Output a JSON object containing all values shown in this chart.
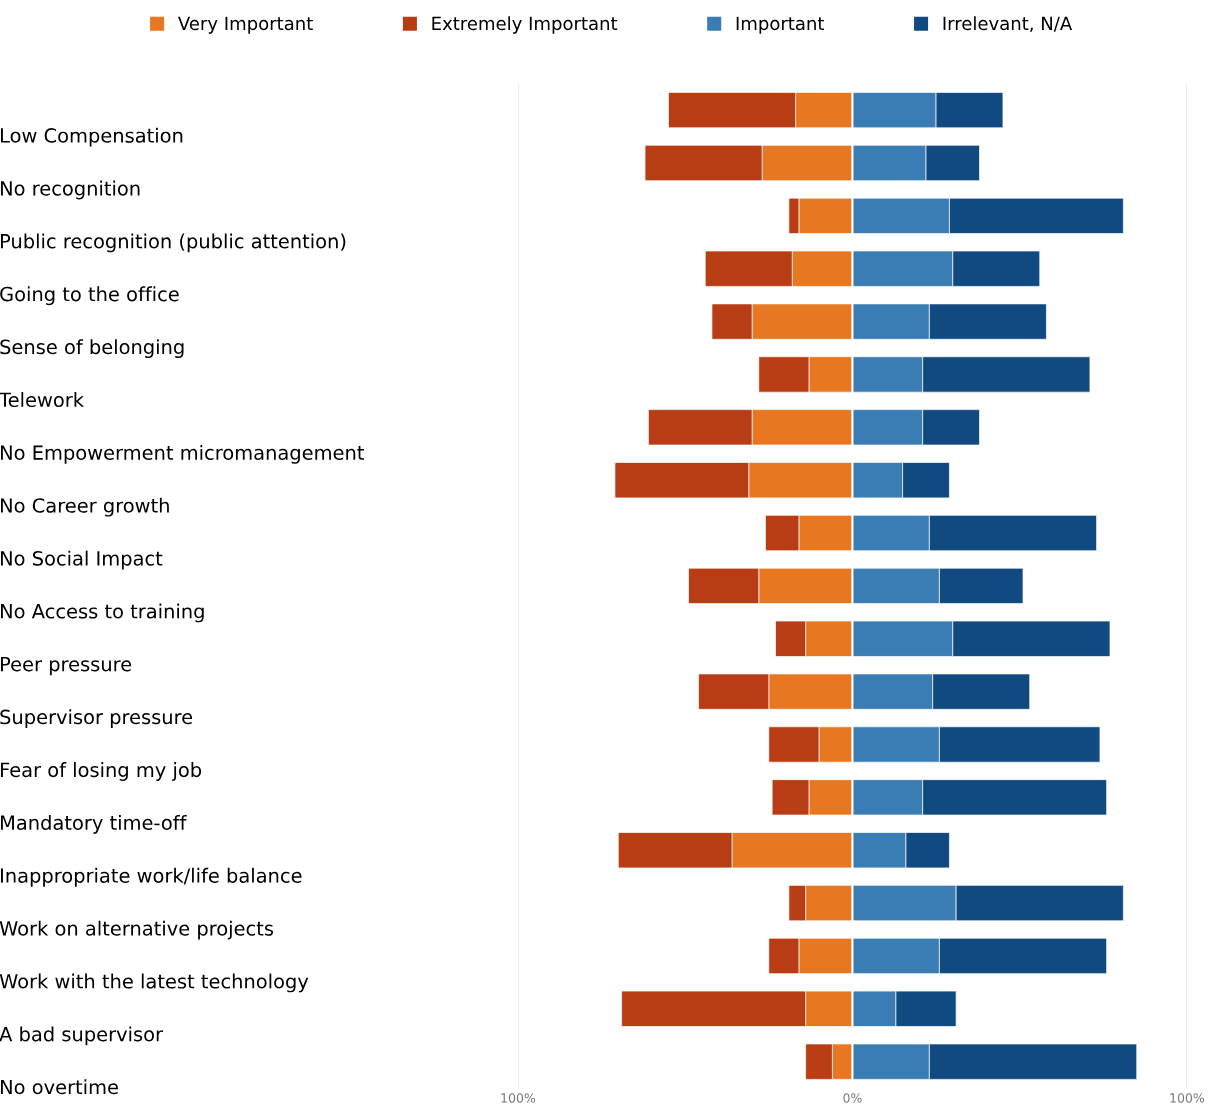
{
  "chart_data": {
    "type": "bar",
    "orientation": "horizontal",
    "stacked": true,
    "categories": [
      "Low Compensation",
      "No recognition",
      "Public recognition (public attention)",
      "Going to the office",
      "Sense of belonging",
      "Telework",
      "No Empowerment micromanagement",
      "No Career growth",
      "No Social Impact",
      "No Access to training",
      "Peer pressure",
      "Supervisor pressure",
      "Fear of losing my job",
      "Mandatory time-off",
      "Inappropriate work/life balance",
      "Work on alternative projects",
      "Work with the latest technology",
      "A bad supervisor",
      "No overtime"
    ],
    "series": [
      {
        "name": "Very Important",
        "color": "#e87722",
        "values": [
          -17,
          -27,
          -16,
          -18,
          -30,
          -13,
          -30,
          -31,
          -16,
          -28,
          -14,
          -25,
          -10,
          -13,
          -36,
          -14,
          -16,
          -14,
          -6
        ]
      },
      {
        "name": "Extremely Important",
        "color": "#b83c14",
        "values": [
          -38,
          -35,
          -3,
          -26,
          -12,
          -15,
          -31,
          -40,
          -10,
          -21,
          -9,
          -21,
          -15,
          -11,
          -34,
          -5,
          -9,
          -55,
          -8
        ]
      },
      {
        "name": "Important",
        "color": "#3a7db5",
        "values": [
          25,
          22,
          29,
          30,
          23,
          21,
          21,
          15,
          23,
          26,
          30,
          24,
          26,
          21,
          16,
          31,
          26,
          13,
          23
        ]
      },
      {
        "name": "Irrelevant, N/A",
        "color": "#114a80",
        "values": [
          20,
          16,
          52,
          26,
          35,
          50,
          17,
          14,
          50,
          25,
          47,
          29,
          48,
          55,
          13,
          50,
          50,
          18,
          62
        ]
      }
    ],
    "xlim": [
      -100,
      100
    ],
    "xticks": [
      {
        "value": -100,
        "label": "100%"
      },
      {
        "value": 0,
        "label": "0%"
      },
      {
        "value": 100,
        "label": "100%"
      }
    ],
    "grid": "x",
    "legend": "top"
  }
}
